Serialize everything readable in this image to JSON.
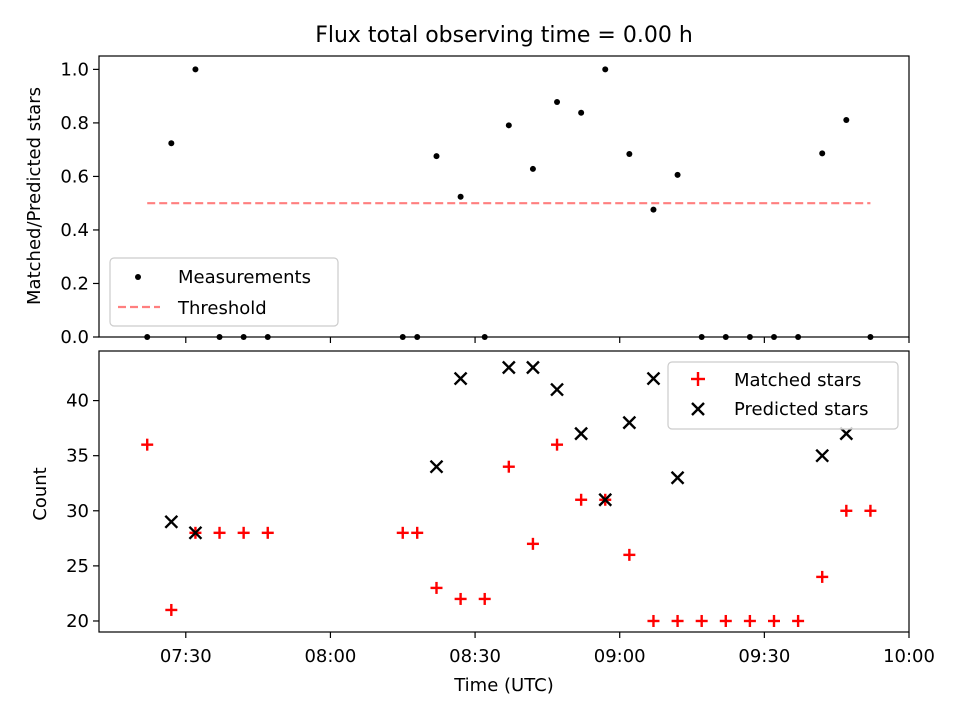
{
  "chart_data": [
    {
      "type": "scatter",
      "title": "Flux total observing time = 0.00 h",
      "xlabel": "",
      "ylabel": "Matched/Predicted stars",
      "ylim": [
        0,
        1.05
      ],
      "yticks": [
        "0.0",
        "0.2",
        "0.4",
        "0.6",
        "0.8",
        "1.0"
      ],
      "xlim": [
        "07:12",
        "10:00"
      ],
      "grid": false,
      "legend": "lower-left",
      "series": [
        {
          "name": "Measurements",
          "style": "dot",
          "color": "#000000",
          "x": [
            "07:22",
            "07:27",
            "07:32",
            "07:37",
            "07:42",
            "07:47",
            "08:15",
            "08:18",
            "08:22",
            "08:27",
            "08:32",
            "08:37",
            "08:42",
            "08:47",
            "08:52",
            "08:57",
            "09:02",
            "09:07",
            "09:12",
            "09:17",
            "09:22",
            "09:27",
            "09:32",
            "09:37",
            "09:42",
            "09:47",
            "09:52"
          ],
          "y": [
            0.0,
            0.724,
            1.0,
            0.0,
            0.0,
            0.0,
            0.0,
            0.0,
            0.676,
            0.524,
            0.0,
            0.791,
            0.628,
            0.878,
            0.838,
            1.0,
            0.684,
            0.476,
            0.606,
            0.0,
            0.0,
            0.0,
            0.0,
            0.0,
            0.686,
            0.811,
            0.0
          ]
        },
        {
          "name": "Threshold",
          "style": "dashed-line",
          "color": "#ff7f7f",
          "x": [
            "07:22",
            "09:52"
          ],
          "y": [
            0.5,
            0.5
          ]
        }
      ]
    },
    {
      "type": "scatter",
      "title": "",
      "xlabel": "Time (UTC)",
      "ylabel": "Count",
      "ylim": [
        19,
        44.5
      ],
      "yticks": [
        "20",
        "25",
        "30",
        "35",
        "40"
      ],
      "xlim": [
        "07:12",
        "10:00"
      ],
      "xticks": [
        "07:30",
        "08:00",
        "08:30",
        "09:00",
        "09:30",
        "10:00"
      ],
      "grid": false,
      "legend": "top-right",
      "series": [
        {
          "name": "Matched stars",
          "style": "plus",
          "color": "#ff0000",
          "x": [
            "07:22",
            "07:27",
            "07:32",
            "07:37",
            "07:42",
            "07:47",
            "08:15",
            "08:18",
            "08:22",
            "08:27",
            "08:32",
            "08:37",
            "08:42",
            "08:47",
            "08:52",
            "08:57",
            "09:02",
            "09:07",
            "09:12",
            "09:17",
            "09:22",
            "09:27",
            "09:32",
            "09:37",
            "09:42",
            "09:47",
            "09:52"
          ],
          "y": [
            36,
            21,
            28,
            28,
            28,
            28,
            28,
            28,
            23,
            22,
            22,
            34,
            27,
            36,
            31,
            31,
            26,
            20,
            20,
            20,
            20,
            20,
            20,
            20,
            24,
            30,
            30
          ]
        },
        {
          "name": "Predicted stars",
          "style": "x",
          "color": "#000000",
          "x": [
            "07:27",
            "07:32",
            "08:22",
            "08:27",
            "08:37",
            "08:42",
            "08:47",
            "08:52",
            "08:57",
            "09:02",
            "09:07",
            "09:12",
            "09:42",
            "09:47"
          ],
          "y": [
            29,
            28,
            34,
            42,
            43,
            43,
            41,
            37,
            31,
            38,
            42,
            33,
            35,
            37
          ]
        }
      ]
    }
  ]
}
